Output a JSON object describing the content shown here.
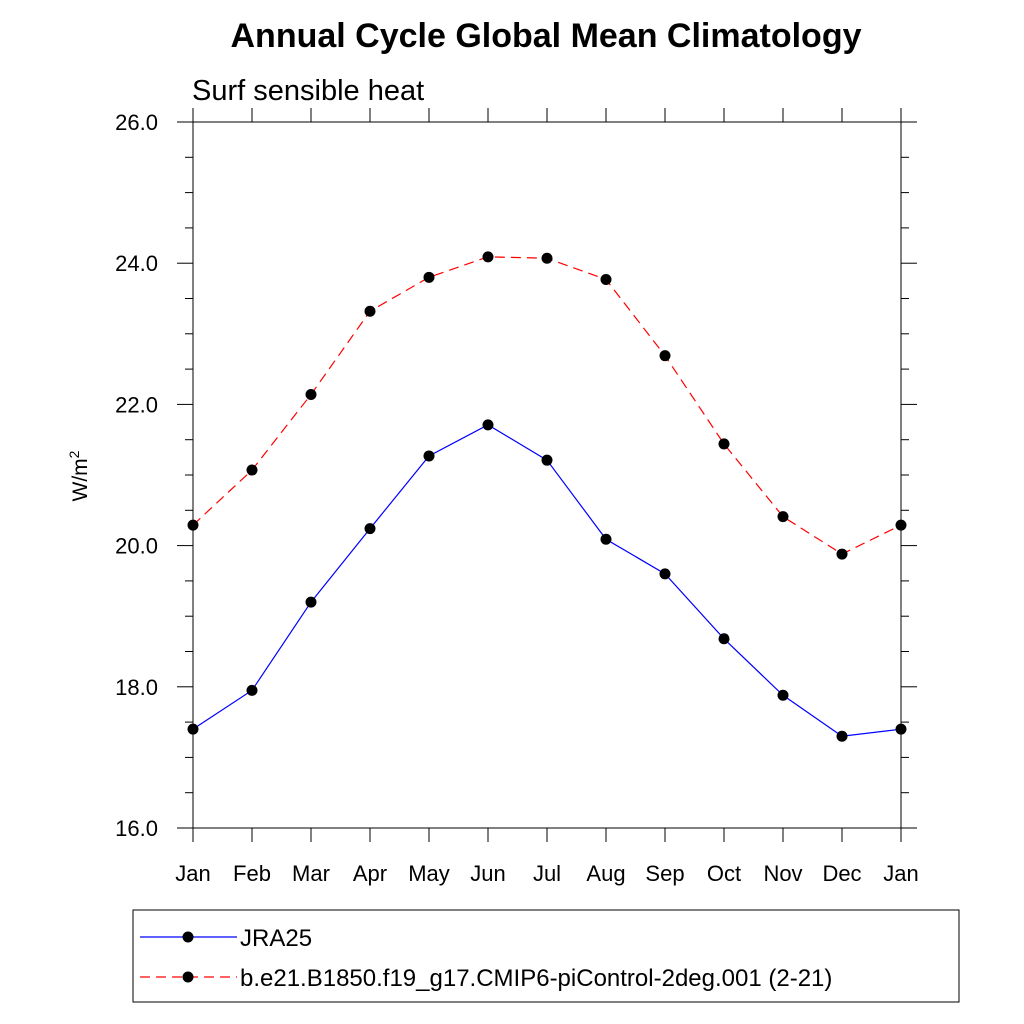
{
  "chart_data": {
    "type": "line",
    "title": "Annual Cycle Global Mean Climatology",
    "subtitle": "Surf sensible heat",
    "ylabel": "W/m",
    "ylabel_superscript": "2",
    "xlabel": "",
    "categories": [
      "Jan",
      "Feb",
      "Mar",
      "Apr",
      "May",
      "Jun",
      "Jul",
      "Aug",
      "Sep",
      "Oct",
      "Nov",
      "Dec",
      "Jan"
    ],
    "ylim": [
      16.0,
      26.0
    ],
    "yticks": [
      "16.0",
      "18.0",
      "20.0",
      "22.0",
      "24.0",
      "26.0"
    ],
    "grid": false,
    "legend_position": "bottom",
    "series": [
      {
        "name": "JRA25",
        "color": "#0000ff",
        "line_style": "solid",
        "marker": "filled-circle",
        "values": [
          17.4,
          17.95,
          19.2,
          20.24,
          21.27,
          21.71,
          21.21,
          20.09,
          19.6,
          18.68,
          17.88,
          17.3,
          17.4
        ]
      },
      {
        "name": "b.e21.B1850.f19_g17.CMIP6-piControl-2deg.001 (2-21)",
        "color": "#ff0000",
        "line_style": "dashed",
        "marker": "filled-circle",
        "values": [
          20.29,
          21.07,
          22.14,
          23.32,
          23.8,
          24.09,
          24.07,
          23.77,
          22.69,
          21.44,
          20.41,
          19.88,
          20.29
        ]
      }
    ]
  }
}
